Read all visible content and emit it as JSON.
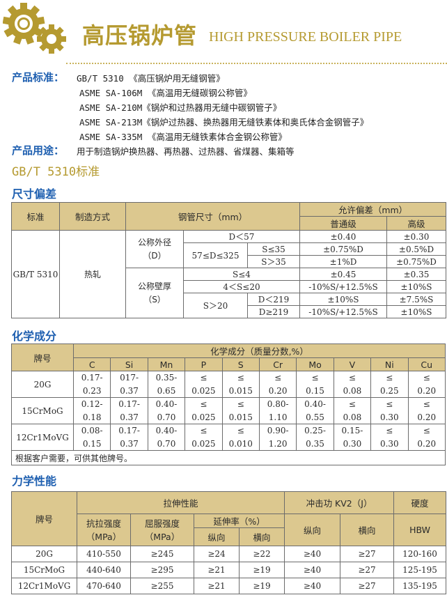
{
  "header": {
    "title_cn": "高压锅炉管",
    "title_en": "HIGH PRESSURE BOILER PIPE",
    "logo_icon": "gears-icon",
    "accent_color": "#b59a30"
  },
  "standards": {
    "label": "产品标准：",
    "items": [
      "GB/T 5310 《高压锅炉用无缝钢管》",
      "ASME SA-106M 《高温用无缝碳钢公称管》",
      "ASME SA-210M《锅炉和过热器用无缝中碳钢管子》",
      "ASME SA-213M《锅炉过热器、换热器用无缝铁素体和奥氏体合金钢管子》",
      "ASME SA-335M 《高温用无缝铁素体合金钢公称管》"
    ]
  },
  "usage": {
    "label": "产品用途：",
    "text": "用于制造锅炉换热器、再热器、过热器、省煤器、集箱等"
  },
  "standard_title": "GB/T 5310标准",
  "dimension": {
    "heading": "尺寸偏差",
    "headers": {
      "standard": "标准",
      "method": "制造方式",
      "size": "钢管尺寸（mm）",
      "tolerance": "允许偏差（mm）",
      "normal": "普通级",
      "high": "高级"
    },
    "standard": "GB/T 5310",
    "method": "热轧",
    "od_label": "公称外径",
    "od_sym": "（D）",
    "wt_label": "公称壁厚",
    "wt_sym": "（S）",
    "rows": [
      {
        "a": "D＜57",
        "normal": "±0.40",
        "high": "±0.30"
      },
      {
        "a": "57≤D≤325",
        "b": "S≤35",
        "normal": "±0.75%D",
        "high": "±0.5%D"
      },
      {
        "b": "S＞35",
        "normal": "±1%D",
        "high": "±0.75%D"
      },
      {
        "a": "S≤4",
        "normal": "±0.45",
        "high": "±0.35"
      },
      {
        "a": "4＜S≤20",
        "normal": "-10%S/+12.5%S",
        "high": "±10%S"
      },
      {
        "a": "S＞20",
        "b": "D＜219",
        "normal": "±10%S",
        "high": "±7.5%S"
      },
      {
        "b": "D≥219",
        "normal": "-10%S/+12.5%S",
        "high": "±10%S"
      }
    ]
  },
  "chemical": {
    "heading": "化学成分",
    "grade_header": "牌号",
    "group_header": "化学成分（质量分数,%）",
    "elements": [
      "C",
      "Si",
      "Mn",
      "P",
      "S",
      "Cr",
      "Mo",
      "V",
      "Ni",
      "Cu"
    ],
    "rows": [
      {
        "grade": "20G",
        "top": [
          "0.17-",
          "017-",
          "0.35-",
          "≤",
          "≤",
          "≤",
          "≤",
          "≤",
          "≤",
          "≤"
        ],
        "bottom": [
          "0.23",
          "0.37",
          "0.65",
          "0.025",
          "0.015",
          "0.20",
          "0.15",
          "0.08",
          "0.25",
          "0.20"
        ]
      },
      {
        "grade": "15CrMoG",
        "top": [
          "0.12-",
          "0.17-",
          "0.40-",
          "≤",
          "≤",
          "0.80-",
          "0.40-",
          "≤",
          "≤",
          "≤"
        ],
        "bottom": [
          "0.18",
          "0.37",
          "0.70",
          "0.025",
          "0.015",
          "1.10",
          "0.55",
          "0.08",
          "0.30",
          "0.20"
        ]
      },
      {
        "grade": "12Cr1MoVG",
        "top": [
          "0.08-",
          "0.17-",
          "0.40-",
          "≤",
          "≤",
          "0.90-",
          "0.25-",
          "0.15-",
          "≤",
          "≤"
        ],
        "bottom": [
          "0.15",
          "0.37",
          "0.70",
          "0.025",
          "0.010",
          "1.20",
          "0.35",
          "0.30",
          "0.30",
          "0.20"
        ]
      }
    ],
    "note": "根据客户需要，可供其他牌号。"
  },
  "mechanical": {
    "heading": "力学性能",
    "headers": {
      "grade": "牌号",
      "tensile_group": "拉伸性能",
      "impact_group": "冲击功 KV2（J）",
      "hardness_group": "硬度",
      "tensile": "抗拉强度",
      "yield": "屈服强度",
      "unit": "（MPa）",
      "elong": "延伸率（%）",
      "long": "纵向",
      "trans": "横向",
      "hbw": "HBW"
    },
    "rows": [
      [
        "20G",
        "410-550",
        "≥245",
        "≥24",
        "≥22",
        "≥40",
        "≥27",
        "120-160"
      ],
      [
        "15CrMoG",
        "440-640",
        "≥295",
        "≥21",
        "≥19",
        "≥40",
        "≥27",
        "125-195"
      ],
      [
        "12Cr1MoVG",
        "470-640",
        "≥255",
        "≥21",
        "≥19",
        "≥40",
        "≥27",
        "135-195"
      ]
    ]
  }
}
